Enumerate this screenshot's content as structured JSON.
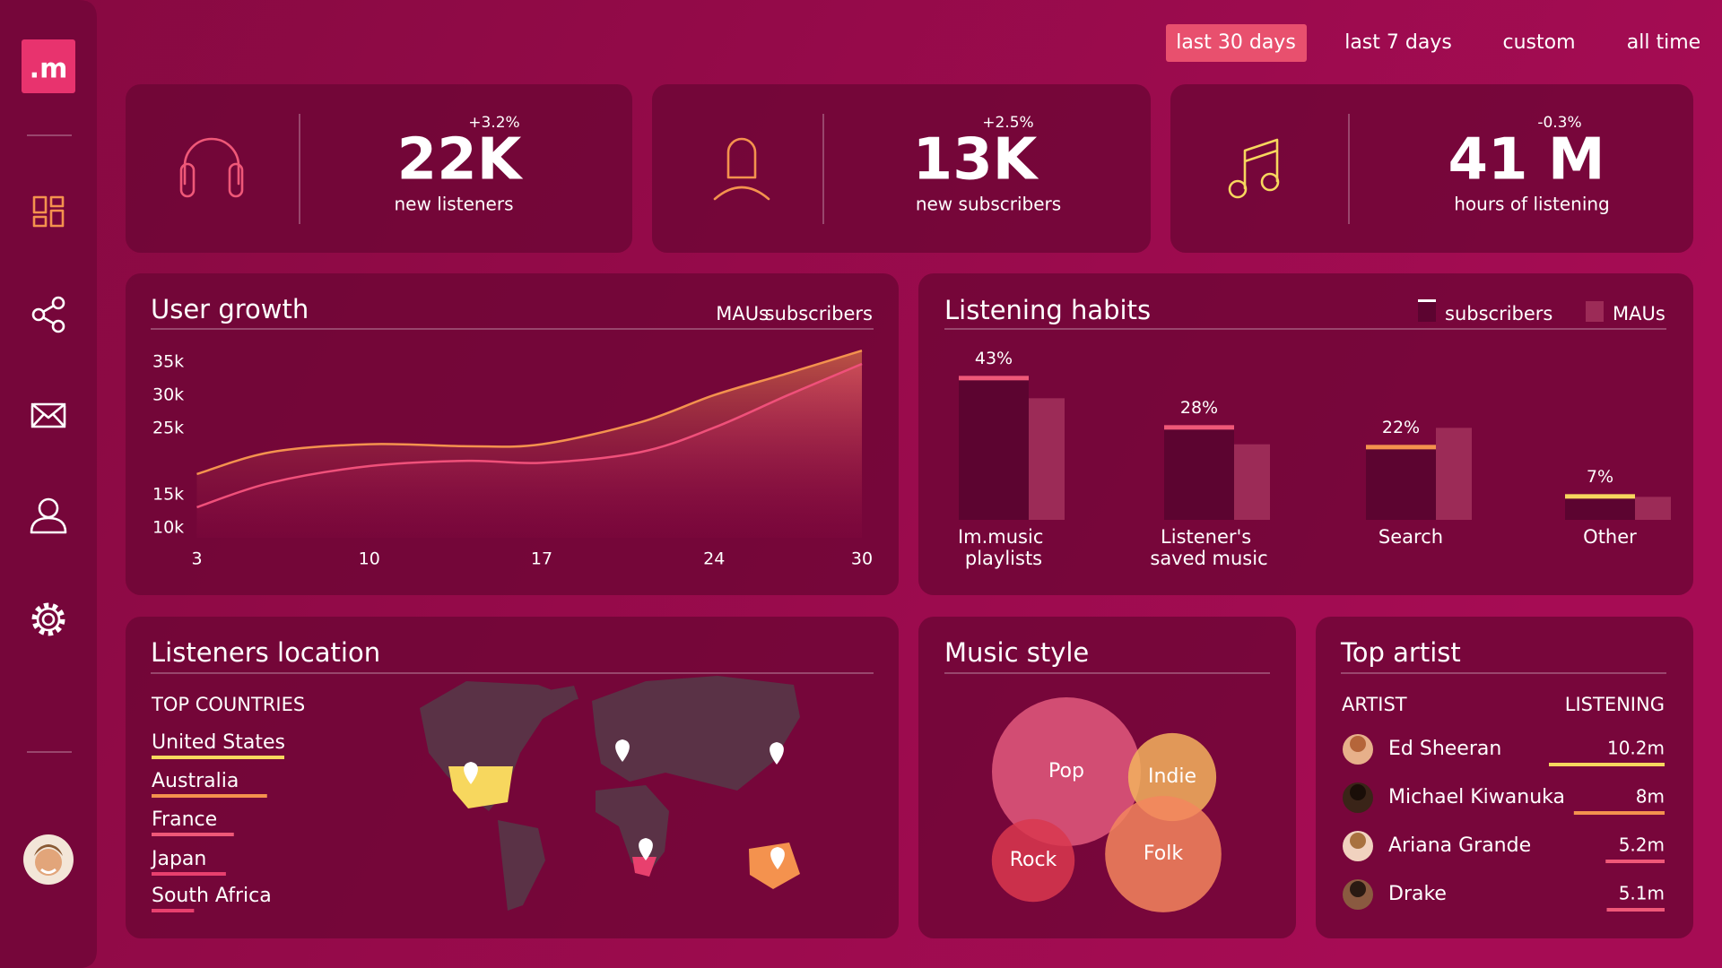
{
  "sidebar": {
    "logo": ".m"
  },
  "filters": {
    "options": [
      "last 30 days",
      "last 7 days",
      "custom",
      "all time"
    ],
    "active": 0
  },
  "kpis": [
    {
      "change": "+3.2%",
      "value": "22K",
      "label": "new listeners",
      "change_color": "#8fc79a"
    },
    {
      "change": "+2.5%",
      "value": "13K",
      "label": "new subscribers",
      "change_color": "#8fc79a"
    },
    {
      "change": "-0.3%",
      "value": "41 M",
      "label": "hours of listening",
      "change_color": "#ff5a72"
    }
  ],
  "chart_data": [
    {
      "type": "line",
      "title": "User growth",
      "x": [
        3,
        6,
        10,
        14,
        17,
        21,
        24,
        27,
        30
      ],
      "series": [
        {
          "name": "MAUs",
          "color": "#f4924e",
          "values": [
            18100,
            21400,
            22600,
            22300,
            22600,
            25900,
            30000,
            33300,
            36700
          ]
        },
        {
          "name": "subscribers",
          "color": "#f0507a",
          "values": [
            13100,
            16800,
            19300,
            20100,
            19800,
            21400,
            25100,
            30000,
            34700
          ]
        }
      ],
      "xlim": [
        2.8,
        30.4
      ],
      "xticks": [
        3,
        10,
        17,
        24,
        30
      ],
      "ylim": [
        8500,
        37000
      ],
      "yticks": [
        {
          "value": 35000,
          "label": "35k"
        },
        {
          "value": 30000,
          "label": "30k"
        },
        {
          "value": 25000,
          "label": "25k"
        },
        {
          "value": 15000,
          "label": "15k"
        },
        {
          "value": 10000,
          "label": "10k"
        }
      ],
      "grid": false
    },
    {
      "type": "bar",
      "title": "Listening habits",
      "categories": [
        "Im.music playlists",
        "Listener's saved music",
        "Search",
        "Other"
      ],
      "series": [
        {
          "name": "subscribers",
          "color": "#5c0430",
          "values": [
            43,
            28,
            22,
            7
          ],
          "value_labels": [
            "43%",
            "28%",
            "22%",
            "7%"
          ],
          "accent_colors": [
            "#ef5878",
            "#ef5878",
            "#f4924e",
            "#f7d75e"
          ]
        },
        {
          "name": "MAUs",
          "color": "#9c2b57",
          "values": [
            37,
            23,
            28,
            7
          ]
        }
      ],
      "ylim": [
        0,
        45
      ]
    },
    {
      "type": "bubble",
      "title": "Music style",
      "categories": [
        "Pop",
        "Indie",
        "Rock",
        "Folk"
      ],
      "values": [
        100,
        35,
        31,
        61
      ],
      "colors": [
        "#e25a7e",
        "#f3b35e",
        "#d9384f",
        "#f3865e"
      ]
    }
  ],
  "listeners_location": {
    "title": "Listeners location",
    "subtitle": "TOP COUNTRIES",
    "categories": [
      "United States",
      "Australia",
      "France",
      "Japan",
      "South Africa"
    ],
    "values": [
      100,
      87,
      62,
      56,
      32
    ],
    "colors": [
      "#f7d75e",
      "#f4924e",
      "#ef5878",
      "#e8406e",
      "#e8406e"
    ]
  },
  "top_artist": {
    "title": "Top artist",
    "columns": [
      "ARTIST",
      "LISTENING"
    ],
    "rows": [
      {
        "name": "Ed Sheeran",
        "value": 10200000,
        "value_label": "10.2m",
        "color": "#f7d75e"
      },
      {
        "name": "Michael Kiwanuka",
        "value": 8000000,
        "value_label": "8m",
        "color": "#f4924e"
      },
      {
        "name": "Ariana Grande",
        "value": 5200000,
        "value_label": "5.2m",
        "color": "#ef5878"
      },
      {
        "name": "Drake",
        "value": 5100000,
        "value_label": "5.1m",
        "color": "#ef5878"
      }
    ]
  }
}
